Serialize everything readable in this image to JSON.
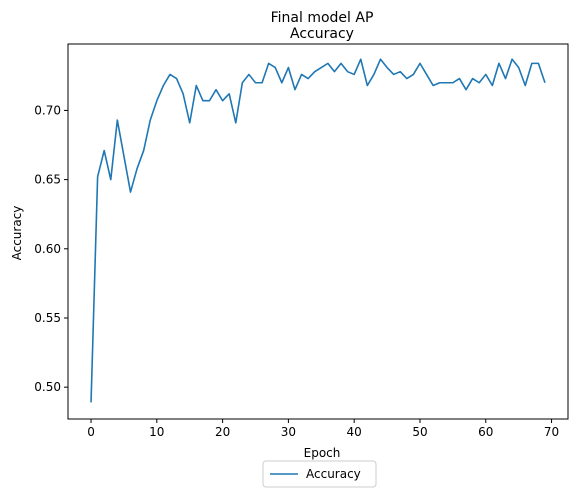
{
  "chart_data": {
    "type": "line",
    "title": "Final model AP",
    "subtitle": "Accuracy",
    "xlabel": "Epoch",
    "ylabel": "Accuracy",
    "xlim": [
      -3.5,
      72.5
    ],
    "ylim": [
      0.477,
      0.748
    ],
    "xticks": [
      0,
      10,
      20,
      30,
      40,
      50,
      60,
      70
    ],
    "yticks": [
      0.5,
      0.55,
      0.6,
      0.65,
      0.7
    ],
    "ytick_labels": [
      "0.50",
      "0.55",
      "0.60",
      "0.65",
      "0.70"
    ],
    "grid": false,
    "legend_position": "bottom-center",
    "series": [
      {
        "name": "Accuracy",
        "color": "#1f77b4",
        "x": [
          0,
          1,
          2,
          3,
          4,
          5,
          6,
          7,
          8,
          9,
          10,
          11,
          12,
          13,
          14,
          15,
          16,
          17,
          18,
          19,
          20,
          21,
          22,
          23,
          24,
          25,
          26,
          27,
          28,
          29,
          30,
          31,
          32,
          33,
          34,
          35,
          36,
          37,
          38,
          39,
          40,
          41,
          42,
          43,
          44,
          45,
          46,
          47,
          48,
          49,
          50,
          51,
          52,
          53,
          54,
          55,
          56,
          57,
          58,
          59,
          60,
          61,
          62,
          63,
          64,
          65,
          66,
          67,
          68,
          69
        ],
        "values": [
          0.489,
          0.652,
          0.671,
          0.65,
          0.693,
          0.667,
          0.641,
          0.658,
          0.671,
          0.693,
          0.707,
          0.718,
          0.726,
          0.723,
          0.712,
          0.691,
          0.718,
          0.707,
          0.707,
          0.715,
          0.707,
          0.712,
          0.691,
          0.72,
          0.726,
          0.72,
          0.72,
          0.734,
          0.731,
          0.72,
          0.731,
          0.715,
          0.726,
          0.723,
          0.728,
          0.731,
          0.734,
          0.728,
          0.734,
          0.728,
          0.726,
          0.737,
          0.718,
          0.726,
          0.737,
          0.731,
          0.726,
          0.728,
          0.723,
          0.726,
          0.734,
          0.726,
          0.718,
          0.72,
          0.72,
          0.72,
          0.723,
          0.715,
          0.723,
          0.72,
          0.726,
          0.718,
          0.734,
          0.723,
          0.737,
          0.731,
          0.718,
          0.734,
          0.734,
          0.72
        ]
      }
    ]
  }
}
